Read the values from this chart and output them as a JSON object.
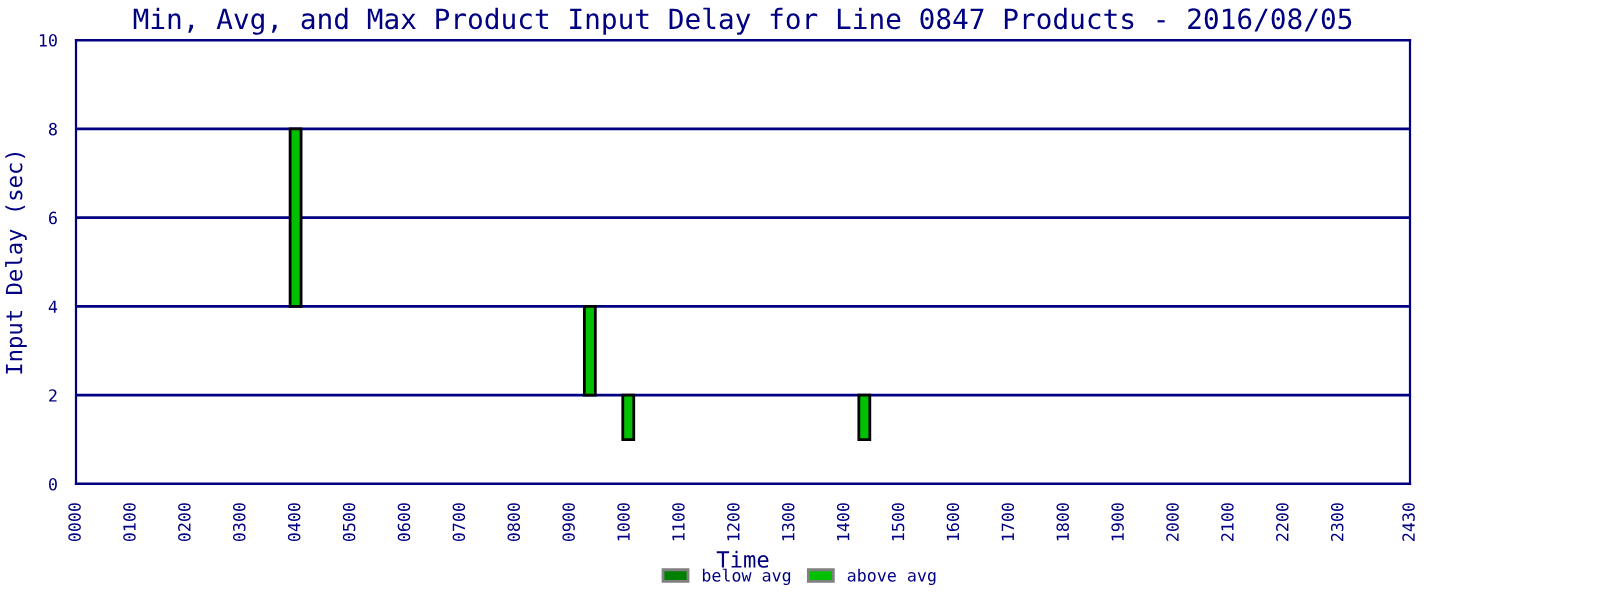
{
  "chart_data": {
    "type": "bar",
    "title": "Min, Avg, and Max Product Input Delay for Line 0847 Products - 2016/08/05",
    "xlabel": "Time",
    "ylabel": "Input Delay (sec)",
    "x": [
      400,
      936,
      1006,
      1436
    ],
    "series": [
      {
        "name": "below avg",
        "color": "#008000",
        "values": [
          null,
          null,
          null,
          null
        ]
      },
      {
        "name": "above avg",
        "color": "#00c000",
        "values": [
          4,
          2,
          1,
          1
        ],
        "base": [
          4,
          2,
          1,
          1
        ]
      }
    ],
    "xlim": [
      0,
      2430
    ],
    "xticks": [
      {
        "value": 0,
        "label": "0000"
      },
      {
        "value": 100,
        "label": "0100"
      },
      {
        "value": 200,
        "label": "0200"
      },
      {
        "value": 300,
        "label": "0300"
      },
      {
        "value": 400,
        "label": "0400"
      },
      {
        "value": 500,
        "label": "0500"
      },
      {
        "value": 600,
        "label": "0600"
      },
      {
        "value": 700,
        "label": "0700"
      },
      {
        "value": 800,
        "label": "0800"
      },
      {
        "value": 900,
        "label": "0900"
      },
      1000,
      1100,
      1200,
      1300,
      1400,
      1500,
      1600,
      1700,
      1800,
      1900,
      2000,
      2100,
      2200,
      2300,
      2430
    ],
    "ylim": [
      0,
      10
    ],
    "yticks": [
      0,
      2,
      4,
      6,
      8,
      10
    ],
    "grid": "y",
    "legend": "bottom"
  }
}
